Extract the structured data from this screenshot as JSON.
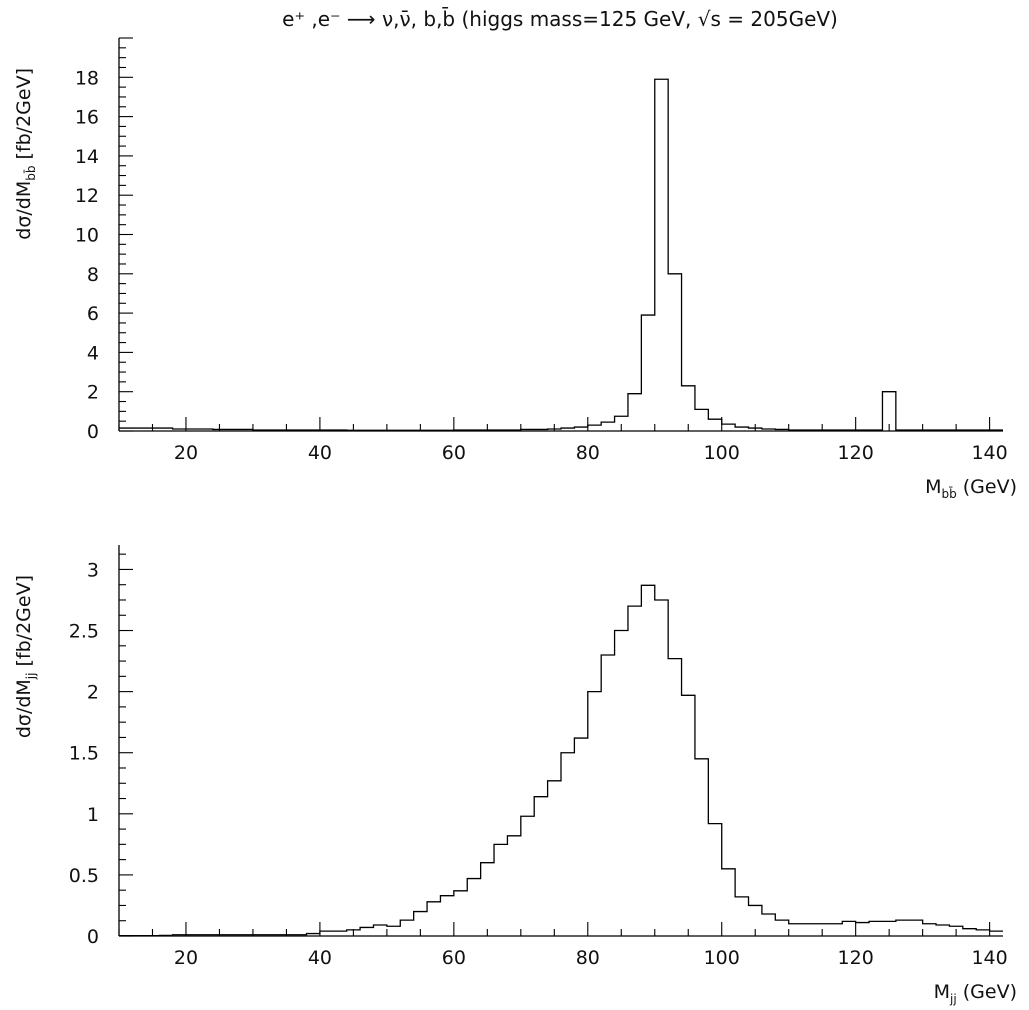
{
  "title": "e⁺ ,e⁻ ⟶ ν,ν̄, b,b̄ (higgs mass=125 GeV, √s = 205GeV)",
  "chart_data": [
    {
      "type": "bar",
      "histogram": true,
      "xlabel": "M_bb̄ (GeV)",
      "ylabel": "dσ/dM_bb̄  [fb/2GeV]",
      "xlim": [
        10,
        142
      ],
      "ylim": [
        0,
        20
      ],
      "xticks": [
        20,
        40,
        60,
        80,
        100,
        120,
        140
      ],
      "yticks": [
        0,
        2,
        4,
        6,
        8,
        10,
        12,
        14,
        16,
        18
      ],
      "bin_width": 2,
      "bin_start": 10,
      "values": [
        0.15,
        0.15,
        0.15,
        0.15,
        0.1,
        0.1,
        0.1,
        0.08,
        0.08,
        0.08,
        0.05,
        0.05,
        0.05,
        0.05,
        0.05,
        0.05,
        0.05,
        0.04,
        0.04,
        0.04,
        0.04,
        0.04,
        0.04,
        0.04,
        0.04,
        0.05,
        0.05,
        0.05,
        0.05,
        0.05,
        0.08,
        0.08,
        0.1,
        0.15,
        0.2,
        0.3,
        0.45,
        0.75,
        1.9,
        5.9,
        17.9,
        8.0,
        2.3,
        1.1,
        0.6,
        0.35,
        0.2,
        0.15,
        0.1,
        0.08,
        0.05,
        0.05,
        0.05,
        0.05,
        0.05,
        0.05,
        0.05,
        2.0,
        0.05,
        0.05,
        0.05,
        0.05,
        0.05,
        0.05,
        0.05,
        0.05
      ]
    },
    {
      "type": "bar",
      "histogram": true,
      "xlabel": "M_jj (GeV)",
      "ylabel": "dσ/dM_jj  [fb/2GeV]",
      "xlim": [
        10,
        142
      ],
      "ylim": [
        0,
        3.2
      ],
      "xticks": [
        20,
        40,
        60,
        80,
        100,
        120,
        140
      ],
      "yticks": [
        0,
        0.5,
        1,
        1.5,
        2,
        2.5,
        3
      ],
      "ytick_labels": [
        "0",
        "0.5",
        "1",
        "1.5",
        "2",
        "2.5",
        "3"
      ],
      "bin_width": 2,
      "bin_start": 10,
      "values": [
        0.003,
        0.003,
        0.003,
        0.005,
        0.01,
        0.01,
        0.01,
        0.01,
        0.01,
        0.01,
        0.01,
        0.01,
        0.01,
        0.01,
        0.02,
        0.04,
        0.04,
        0.05,
        0.07,
        0.09,
        0.08,
        0.13,
        0.2,
        0.28,
        0.33,
        0.37,
        0.47,
        0.6,
        0.75,
        0.82,
        0.98,
        1.14,
        1.27,
        1.5,
        1.62,
        2.0,
        2.3,
        2.5,
        2.7,
        2.87,
        2.75,
        2.27,
        1.97,
        1.45,
        0.92,
        0.55,
        0.32,
        0.25,
        0.18,
        0.13,
        0.1,
        0.1,
        0.1,
        0.1,
        0.12,
        0.11,
        0.12,
        0.12,
        0.13,
        0.13,
        0.1,
        0.09,
        0.08,
        0.06,
        0.05,
        0.04
      ]
    }
  ]
}
